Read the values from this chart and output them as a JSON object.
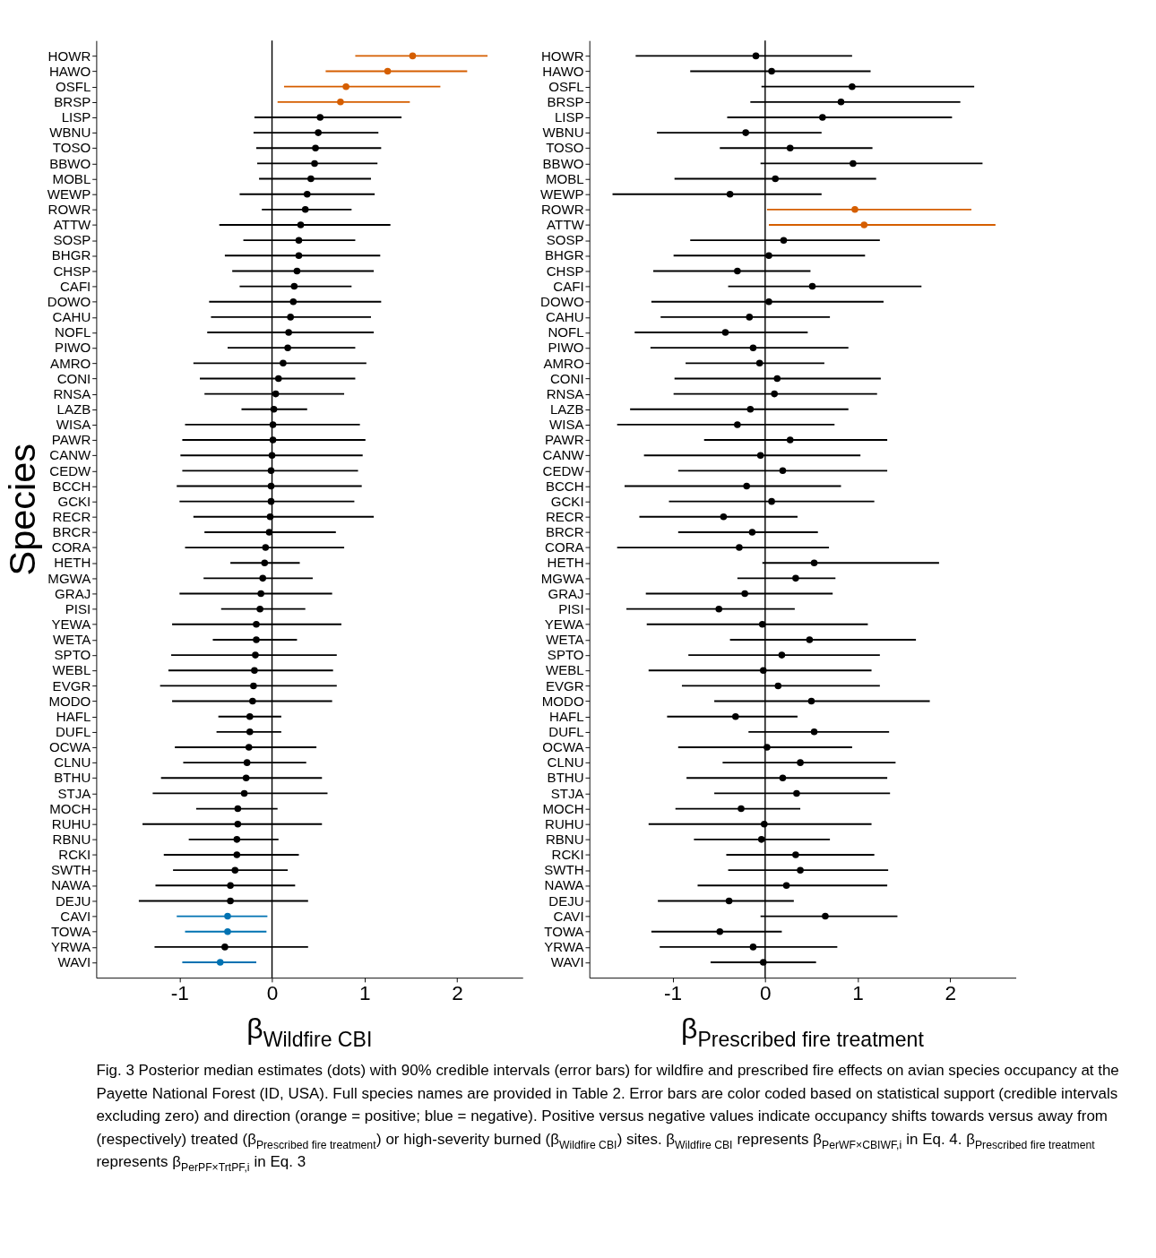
{
  "chart_data": [
    {
      "type": "scatter",
      "orientation": "horizontal",
      "ylabel": "Species",
      "xlabel": "β$_{Wildfire CBI}$",
      "xlim": [
        -1.9,
        2.71
      ],
      "xticks": [
        -1,
        0,
        1,
        2
      ],
      "categories": [
        "HOWR",
        "HAWO",
        "OSFL",
        "BRSP",
        "LISP",
        "WBNU",
        "TOSO",
        "BBWO",
        "MOBL",
        "WEWP",
        "ROWR",
        "ATTW",
        "SOSP",
        "BHGR",
        "CHSP",
        "CAFI",
        "DOWO",
        "CAHU",
        "NOFL",
        "PIWO",
        "AMRO",
        "CONI",
        "RNSA",
        "LAZB",
        "WISA",
        "PAWR",
        "CANW",
        "CEDW",
        "BCCH",
        "GCKI",
        "RECR",
        "BRCR",
        "CORA",
        "HETH",
        "MGWA",
        "GRAJ",
        "PISI",
        "YEWA",
        "WETA",
        "SPTO",
        "WEBL",
        "EVGR",
        "MODO",
        "HAFL",
        "DUFL",
        "OCWA",
        "CLNU",
        "BTHU",
        "STJA",
        "MOCH",
        "RUHU",
        "RBNU",
        "RCKI",
        "SWTH",
        "NAWA",
        "DEJU",
        "CAVI",
        "TOWA",
        "YRWA",
        "WAVI"
      ],
      "ref_lines": [
        {
          "axis": "x",
          "value": 0,
          "color": "#000000"
        }
      ],
      "series": [
        {
          "values": [
            1.52,
            1.25,
            0.8,
            0.74,
            0.52,
            0.5,
            0.47,
            0.46,
            0.42,
            0.38,
            0.36,
            0.31,
            0.29,
            0.29,
            0.27,
            0.24,
            0.23,
            0.2,
            0.18,
            0.17,
            0.12,
            0.07,
            0.04,
            0.02,
            0.01,
            0.01,
            0.0,
            -0.01,
            -0.01,
            -0.01,
            -0.02,
            -0.03,
            -0.07,
            -0.08,
            -0.1,
            -0.12,
            -0.13,
            -0.17,
            -0.17,
            -0.18,
            -0.19,
            -0.2,
            -0.21,
            -0.24,
            -0.24,
            -0.25,
            -0.27,
            -0.28,
            -0.3,
            -0.37,
            -0.37,
            -0.38,
            -0.38,
            -0.4,
            -0.45,
            -0.45,
            -0.48,
            -0.48,
            -0.51,
            -0.56
          ],
          "errors": [
            [
              0.9,
              2.33
            ],
            [
              0.58,
              2.11
            ],
            [
              0.13,
              1.82
            ],
            [
              0.06,
              1.49
            ],
            [
              -0.19,
              1.4
            ],
            [
              -0.2,
              1.15
            ],
            [
              -0.17,
              1.18
            ],
            [
              -0.16,
              1.14
            ],
            [
              -0.14,
              1.07
            ],
            [
              -0.35,
              1.11
            ],
            [
              -0.11,
              0.86
            ],
            [
              -0.57,
              1.28
            ],
            [
              -0.31,
              0.9
            ],
            [
              -0.51,
              1.17
            ],
            [
              -0.43,
              1.1
            ],
            [
              -0.35,
              0.86
            ],
            [
              -0.68,
              1.18
            ],
            [
              -0.66,
              1.07
            ],
            [
              -0.7,
              1.1
            ],
            [
              -0.48,
              0.9
            ],
            [
              -0.85,
              1.02
            ],
            [
              -0.78,
              0.9
            ],
            [
              -0.73,
              0.78
            ],
            [
              -0.33,
              0.38
            ],
            [
              -0.94,
              0.95
            ],
            [
              -0.97,
              1.01
            ],
            [
              -0.99,
              0.98
            ],
            [
              -0.97,
              0.93
            ],
            [
              -1.03,
              0.97
            ],
            [
              -1.0,
              0.89
            ],
            [
              -0.85,
              1.1
            ],
            [
              -0.73,
              0.69
            ],
            [
              -0.94,
              0.78
            ],
            [
              -0.45,
              0.3
            ],
            [
              -0.74,
              0.44
            ],
            [
              -1.0,
              0.65
            ],
            [
              -0.55,
              0.36
            ],
            [
              -1.08,
              0.75
            ],
            [
              -0.64,
              0.27
            ],
            [
              -1.09,
              0.7
            ],
            [
              -1.12,
              0.66
            ],
            [
              -1.21,
              0.7
            ],
            [
              -1.08,
              0.65
            ],
            [
              -0.58,
              0.1
            ],
            [
              -0.6,
              0.1
            ],
            [
              -1.05,
              0.48
            ],
            [
              -0.96,
              0.37
            ],
            [
              -1.2,
              0.54
            ],
            [
              -1.29,
              0.6
            ],
            [
              -0.82,
              0.06
            ],
            [
              -1.4,
              0.54
            ],
            [
              -0.9,
              0.07
            ],
            [
              -1.17,
              0.29
            ],
            [
              -1.07,
              0.17
            ],
            [
              -1.26,
              0.25
            ],
            [
              -1.44,
              0.39
            ],
            [
              -1.03,
              -0.05
            ],
            [
              -0.94,
              -0.06
            ],
            [
              -1.27,
              0.39
            ],
            [
              -0.97,
              -0.17
            ]
          ],
          "colors": [
            "#d55e00",
            "#d55e00",
            "#d55e00",
            "#d55e00",
            "#000000",
            "#000000",
            "#000000",
            "#000000",
            "#000000",
            "#000000",
            "#000000",
            "#000000",
            "#000000",
            "#000000",
            "#000000",
            "#000000",
            "#000000",
            "#000000",
            "#000000",
            "#000000",
            "#000000",
            "#000000",
            "#000000",
            "#000000",
            "#000000",
            "#000000",
            "#000000",
            "#000000",
            "#000000",
            "#000000",
            "#000000",
            "#000000",
            "#000000",
            "#000000",
            "#000000",
            "#000000",
            "#000000",
            "#000000",
            "#000000",
            "#000000",
            "#000000",
            "#000000",
            "#000000",
            "#000000",
            "#000000",
            "#000000",
            "#000000",
            "#000000",
            "#000000",
            "#000000",
            "#000000",
            "#000000",
            "#000000",
            "#000000",
            "#000000",
            "#000000",
            "#0072b2",
            "#0072b2",
            "#000000",
            "#0072b2"
          ]
        }
      ],
      "annotations": [
        "Fig. 3 Posterior median estimates (dots) with 90% credible intervals (error bars) for wildfire and prescribed fire effects on avian species occupancy at the Payette National Forest (ID, USA). Full species names are provided in Table 2. Error bars are color coded based on statistical support (credible intervals excluding zero) and direction (orange = positive; blue = negative). Positive versus negative values indicate occupancy shifts towards versus away from (respectively) treated (β$_{Prescribed fire treatment}$) or high-severity burned (β$_{Wildfire CBI}$) sites. β$_{Wildfire CBI}$ represents β$_{PerWF×CBIWF,i}$ in Eq. 4. β$_{Prescribed fire treatment}$ represents β$_{PerPF×TrtPF,i}$ in Eq. 3"
      ]
    },
    {
      "type": "scatter",
      "orientation": "horizontal",
      "xlabel": "β$_{Prescribed fire treatment}$",
      "xlim": [
        -1.9,
        2.71
      ],
      "xticks": [
        -1,
        0,
        1,
        2
      ],
      "categories": [
        "HOWR",
        "HAWO",
        "OSFL",
        "BRSP",
        "LISP",
        "WBNU",
        "TOSO",
        "BBWO",
        "MOBL",
        "WEWP",
        "ROWR",
        "ATTW",
        "SOSP",
        "BHGR",
        "CHSP",
        "CAFI",
        "DOWO",
        "CAHU",
        "NOFL",
        "PIWO",
        "AMRO",
        "CONI",
        "RNSA",
        "LAZB",
        "WISA",
        "PAWR",
        "CANW",
        "CEDW",
        "BCCH",
        "GCKI",
        "RECR",
        "BRCR",
        "CORA",
        "HETH",
        "MGWA",
        "GRAJ",
        "PISI",
        "YEWA",
        "WETA",
        "SPTO",
        "WEBL",
        "EVGR",
        "MODO",
        "HAFL",
        "DUFL",
        "OCWA",
        "CLNU",
        "BTHU",
        "STJA",
        "MOCH",
        "RUHU",
        "RBNU",
        "RCKI",
        "SWTH",
        "NAWA",
        "DEJU",
        "CAVI",
        "TOWA",
        "YRWA",
        "WAVI"
      ],
      "ref_lines": [
        {
          "axis": "x",
          "value": 0,
          "color": "#000000"
        }
      ],
      "series": [
        {
          "values": [
            -0.1,
            0.07,
            0.94,
            0.82,
            0.62,
            -0.21,
            0.27,
            0.95,
            0.11,
            -0.38,
            0.97,
            1.07,
            0.2,
            0.04,
            -0.3,
            0.51,
            0.04,
            -0.17,
            -0.43,
            -0.13,
            -0.06,
            0.13,
            0.1,
            -0.16,
            -0.3,
            0.27,
            -0.05,
            0.19,
            -0.2,
            0.07,
            -0.45,
            -0.14,
            -0.28,
            0.53,
            0.33,
            -0.22,
            -0.5,
            -0.03,
            0.48,
            0.18,
            -0.02,
            0.14,
            0.5,
            -0.32,
            0.53,
            0.02,
            0.38,
            0.19,
            0.34,
            -0.26,
            -0.01,
            -0.04,
            0.33,
            0.38,
            0.23,
            -0.39,
            0.65,
            -0.49,
            -0.13,
            -0.02
          ],
          "errors": [
            [
              -1.4,
              0.94
            ],
            [
              -0.81,
              1.14
            ],
            [
              -0.04,
              2.26
            ],
            [
              -0.16,
              2.11
            ],
            [
              -0.41,
              2.02
            ],
            [
              -1.17,
              0.61
            ],
            [
              -0.49,
              1.16
            ],
            [
              -0.05,
              2.35
            ],
            [
              -0.98,
              1.2
            ],
            [
              -1.65,
              0.61
            ],
            [
              0.02,
              2.23
            ],
            [
              0.04,
              2.49
            ],
            [
              -0.81,
              1.24
            ],
            [
              -0.99,
              1.08
            ],
            [
              -1.21,
              0.49
            ],
            [
              -0.4,
              1.69
            ],
            [
              -1.23,
              1.28
            ],
            [
              -1.13,
              0.7
            ],
            [
              -1.41,
              0.46
            ],
            [
              -1.24,
              0.9
            ],
            [
              -0.86,
              0.64
            ],
            [
              -0.98,
              1.25
            ],
            [
              -0.99,
              1.21
            ],
            [
              -1.46,
              0.9
            ],
            [
              -1.6,
              0.75
            ],
            [
              -0.66,
              1.32
            ],
            [
              -1.31,
              1.03
            ],
            [
              -0.94,
              1.32
            ],
            [
              -1.52,
              0.82
            ],
            [
              -1.04,
              1.18
            ],
            [
              -1.36,
              0.35
            ],
            [
              -0.94,
              0.57
            ],
            [
              -1.6,
              0.69
            ],
            [
              -0.03,
              1.88
            ],
            [
              -0.3,
              0.76
            ],
            [
              -1.29,
              0.73
            ],
            [
              -1.5,
              0.32
            ],
            [
              -1.28,
              1.11
            ],
            [
              -0.38,
              1.63
            ],
            [
              -0.83,
              1.24
            ],
            [
              -1.26,
              1.15
            ],
            [
              -0.9,
              1.24
            ],
            [
              -0.55,
              1.78
            ],
            [
              -1.06,
              0.35
            ],
            [
              -0.18,
              1.34
            ],
            [
              -0.94,
              0.94
            ],
            [
              -0.46,
              1.41
            ],
            [
              -0.85,
              1.32
            ],
            [
              -0.55,
              1.35
            ],
            [
              -0.97,
              0.38
            ],
            [
              -1.26,
              1.15
            ],
            [
              -0.77,
              0.7
            ],
            [
              -0.42,
              1.18
            ],
            [
              -0.4,
              1.33
            ],
            [
              -0.73,
              1.32
            ],
            [
              -1.16,
              0.31
            ],
            [
              -0.05,
              1.43
            ],
            [
              -1.23,
              0.18
            ],
            [
              -1.14,
              0.78
            ],
            [
              -0.59,
              0.55
            ]
          ],
          "colors": [
            "#000000",
            "#000000",
            "#000000",
            "#000000",
            "#000000",
            "#000000",
            "#000000",
            "#000000",
            "#000000",
            "#000000",
            "#d55e00",
            "#d55e00",
            "#000000",
            "#000000",
            "#000000",
            "#000000",
            "#000000",
            "#000000",
            "#000000",
            "#000000",
            "#000000",
            "#000000",
            "#000000",
            "#000000",
            "#000000",
            "#000000",
            "#000000",
            "#000000",
            "#000000",
            "#000000",
            "#000000",
            "#000000",
            "#000000",
            "#000000",
            "#000000",
            "#000000",
            "#000000",
            "#000000",
            "#000000",
            "#000000",
            "#000000",
            "#000000",
            "#000000",
            "#000000",
            "#000000",
            "#000000",
            "#000000",
            "#000000",
            "#000000",
            "#000000",
            "#000000",
            "#000000",
            "#000000",
            "#000000",
            "#000000",
            "#000000",
            "#000000",
            "#000000",
            "#000000",
            "#000000"
          ]
        }
      ]
    }
  ]
}
